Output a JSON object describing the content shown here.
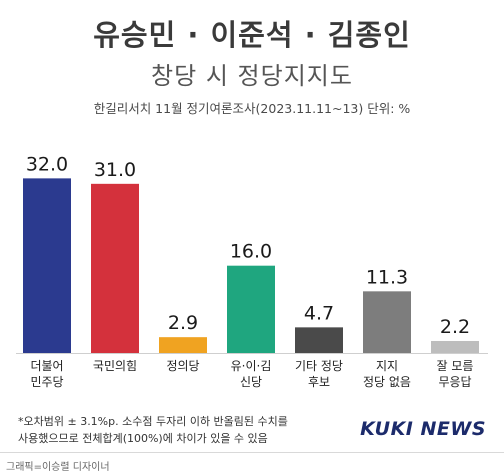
{
  "header": {
    "title": "유승민 · 이준석 · 김종인",
    "subtitle": "창당 시 정당지지도",
    "source": "한길리서치 11월 정기여론조사(2023.11.11~13) 단위: %"
  },
  "chart_data": {
    "type": "bar",
    "categories": [
      [
        "더불어",
        "민주당"
      ],
      [
        "국민의힘"
      ],
      [
        "정의당"
      ],
      [
        "유·이·김",
        "신당"
      ],
      [
        "기타 정당",
        "후보"
      ],
      [
        "지지",
        "정당 없음"
      ],
      [
        "잘 모름",
        "무응답"
      ]
    ],
    "values": [
      32.0,
      31.0,
      2.9,
      16.0,
      4.7,
      11.3,
      2.2
    ],
    "value_labels": [
      "32.0",
      "31.0",
      "2.9",
      "16.0",
      "4.7",
      "11.3",
      "2.2"
    ],
    "bar_colors": [
      "#2b3a8f",
      "#d4313c",
      "#f0a321",
      "#1fa67f",
      "#4a4a4a",
      "#7d7d7d",
      "#bdbdbd"
    ],
    "ylim": [
      0,
      35
    ],
    "grid": false,
    "legend": "none"
  },
  "footer": {
    "footnote_line1": "*오차범위 ± 3.1%p. 소수점 두자리 이하 반올림된 수치를",
    "footnote_line2": "사용했으므로 전체합계(100%)에 차이가 있을 수 있음",
    "brand": "KUKI NEWS",
    "credit": "그래픽=이승렬 디자이너"
  }
}
